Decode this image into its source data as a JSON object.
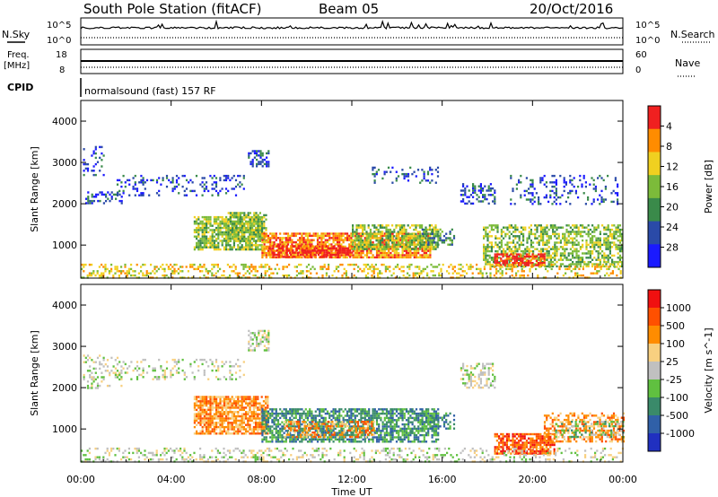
{
  "header": {
    "station": "South Pole Station (fitACF)",
    "beam": "Beam 05",
    "date": "20/Oct/2016"
  },
  "top_panel": {
    "nsky_label": "N.Sky",
    "nsky_ticks": [
      "10^5",
      "10^0"
    ],
    "nsearch_label": "N.Search",
    "nsearch_ticks": [
      "10^5",
      "10^0"
    ],
    "freq_label_1": "Freq.",
    "freq_label_2": "[MHz]",
    "freq_ticks": [
      "18",
      "8"
    ],
    "nave_label": "Nave",
    "nave_ticks": [
      "60",
      "0"
    ],
    "cpid_label": "CPID",
    "cpid_text": "normalsound (fast) 157 RF"
  },
  "chart_data": [
    {
      "type": "heatmap",
      "title": "",
      "xlabel": "Time UT",
      "ylabel": "Slant Range [km]",
      "x_ticks": [
        "00:00",
        "04:00",
        "08:00",
        "12:00",
        "16:00",
        "20:00",
        "00:00"
      ],
      "y_ticks": [
        "1000",
        "2000",
        "3000",
        "4000"
      ],
      "ylim": [
        200,
        4500
      ],
      "xlim_hours": [
        0,
        24
      ],
      "colorbar": {
        "label": "Power [dB]",
        "ticks": [
          "4",
          "8",
          "12",
          "16",
          "20",
          "24",
          "28"
        ],
        "colors": [
          "#1a1aff",
          "#2a4aa8",
          "#3a8a4a",
          "#7cbb3a",
          "#f0d020",
          "#ff8c00",
          "#f02020"
        ]
      },
      "regions": [
        {
          "t0": 0.1,
          "t1": 1.0,
          "r0": 2600,
          "r1": 3400,
          "level": 1,
          "density": 0.15
        },
        {
          "t0": 0.2,
          "t1": 1.8,
          "r0": 2000,
          "r1": 2300,
          "level": 1,
          "density": 0.35
        },
        {
          "t0": 1.5,
          "t1": 7.2,
          "r0": 2200,
          "r1": 2700,
          "level": 1,
          "density": 0.25
        },
        {
          "t0": 7.4,
          "t1": 8.3,
          "r0": 2900,
          "r1": 3300,
          "level": 1,
          "density": 0.55
        },
        {
          "t0": 12.8,
          "t1": 15.8,
          "r0": 2500,
          "r1": 2900,
          "level": 1,
          "density": 0.25
        },
        {
          "t0": 16.8,
          "t1": 18.3,
          "r0": 2000,
          "r1": 2500,
          "level": 1,
          "density": 0.45
        },
        {
          "t0": 19.0,
          "t1": 23.8,
          "r0": 2000,
          "r1": 2700,
          "level": 1,
          "density": 0.2
        },
        {
          "t0": 5.0,
          "t1": 8.0,
          "r0": 900,
          "r1": 1700,
          "level": 3,
          "density": 0.75
        },
        {
          "t0": 6.5,
          "t1": 8.2,
          "r0": 1100,
          "r1": 1800,
          "level": 3,
          "density": 0.6
        },
        {
          "t0": 8.0,
          "t1": 15.5,
          "r0": 700,
          "r1": 1300,
          "level": 5,
          "density": 0.8
        },
        {
          "t0": 8.3,
          "t1": 12.0,
          "r0": 700,
          "r1": 1000,
          "level": 6,
          "density": 0.6
        },
        {
          "t0": 12.0,
          "t1": 15.8,
          "r0": 900,
          "r1": 1500,
          "level": 3,
          "density": 0.65
        },
        {
          "t0": 15.0,
          "t1": 16.5,
          "r0": 1000,
          "r1": 1400,
          "level": 2,
          "density": 0.4
        },
        {
          "t0": 17.8,
          "t1": 24.0,
          "r0": 500,
          "r1": 1500,
          "level": 3,
          "density": 0.55
        },
        {
          "t0": 18.3,
          "t1": 20.5,
          "r0": 500,
          "r1": 800,
          "level": 6,
          "density": 0.75
        },
        {
          "t0": 0.0,
          "t1": 24.0,
          "r0": 200,
          "r1": 550,
          "level": 4,
          "density": 0.3
        }
      ]
    },
    {
      "type": "heatmap",
      "title": "",
      "xlabel": "Time UT",
      "ylabel": "Slant Range [km]",
      "x_ticks": [
        "00:00",
        "04:00",
        "08:00",
        "12:00",
        "16:00",
        "20:00",
        "00:00"
      ],
      "y_ticks": [
        "1000",
        "2000",
        "3000",
        "4000"
      ],
      "ylim": [
        200,
        4500
      ],
      "xlim_hours": [
        0,
        24
      ],
      "colorbar": {
        "label": "Velocity [m s^-1]",
        "ticks": [
          "1000",
          "500",
          "100",
          "25",
          "-25",
          "-100",
          "-500",
          "-1000"
        ],
        "colors": [
          "#2030c0",
          "#3060a8",
          "#3a8a6a",
          "#60c040",
          "#c0c0c0",
          "#f8d080",
          "#ff8c00",
          "#ff5000",
          "#f01010"
        ]
      },
      "regions": [
        {
          "t0": 0.1,
          "t1": 1.8,
          "r0": 2000,
          "r1": 2800,
          "level": 4,
          "density": 0.25
        },
        {
          "t0": 1.5,
          "t1": 7.2,
          "r0": 2200,
          "r1": 2700,
          "level": 4,
          "density": 0.2
        },
        {
          "t0": 7.4,
          "t1": 8.3,
          "r0": 2900,
          "r1": 3400,
          "level": 4,
          "density": 0.55
        },
        {
          "t0": 16.8,
          "t1": 18.3,
          "r0": 2000,
          "r1": 2600,
          "level": 4,
          "density": 0.45
        },
        {
          "t0": 5.0,
          "t1": 8.3,
          "r0": 900,
          "r1": 1800,
          "level": 6,
          "density": 0.8
        },
        {
          "t0": 8.0,
          "t1": 15.8,
          "r0": 700,
          "r1": 1500,
          "level": 2,
          "density": 0.7
        },
        {
          "t0": 9.0,
          "t1": 13.0,
          "r0": 800,
          "r1": 1200,
          "level": 6,
          "density": 0.45
        },
        {
          "t0": 15.0,
          "t1": 16.5,
          "r0": 1000,
          "r1": 1400,
          "level": 2,
          "density": 0.4
        },
        {
          "t0": 18.3,
          "t1": 21.0,
          "r0": 400,
          "r1": 900,
          "level": 7,
          "density": 0.8
        },
        {
          "t0": 20.5,
          "t1": 24.0,
          "r0": 700,
          "r1": 1400,
          "level": 6,
          "density": 0.5
        },
        {
          "t0": 21.0,
          "t1": 24.0,
          "r0": 800,
          "r1": 1200,
          "level": 3,
          "density": 0.35
        },
        {
          "t0": 0.0,
          "t1": 24.0,
          "r0": 200,
          "r1": 550,
          "level": 4,
          "density": 0.25
        }
      ]
    }
  ]
}
